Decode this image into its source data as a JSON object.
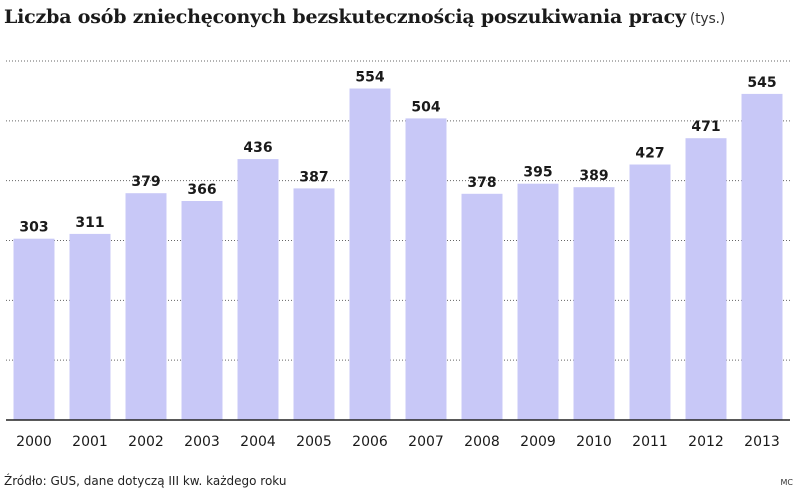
{
  "title": "Liczba osób zniechęconych bezskutecznością poszukiwania pracy",
  "unit": "(tys.)",
  "source": "Źródło: GUS, dane dotyczą III kw. każdego roku",
  "author": "MC",
  "colors": {
    "bar": "#c8c8f7",
    "grid": "#666666",
    "axis": "#222222"
  },
  "chart_data": {
    "type": "bar",
    "categories": [
      "2000",
      "2001",
      "2002",
      "2003",
      "2004",
      "2005",
      "2006",
      "2007",
      "2008",
      "2009",
      "2010",
      "2011",
      "2012",
      "2013"
    ],
    "values": [
      303,
      311,
      379,
      366,
      436,
      387,
      554,
      504,
      378,
      395,
      389,
      427,
      471,
      545
    ],
    "ylim": [
      0,
      600
    ],
    "grid": true,
    "xlabel": "",
    "ylabel": ""
  }
}
